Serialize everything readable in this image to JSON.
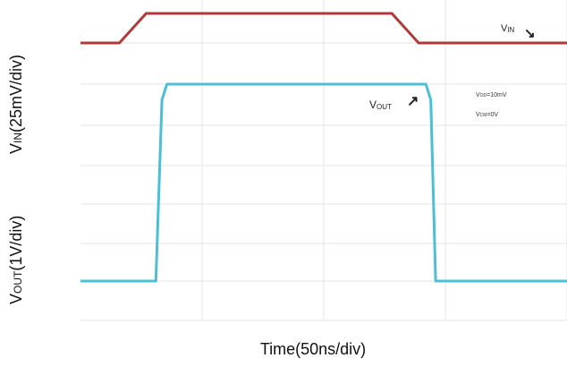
{
  "chart_data": {
    "type": "line",
    "title": "",
    "xlabel": "Time(50ns/div)",
    "ylabel_main": "V",
    "ylabel_out_sub": "OUT",
    "ylabel_out_rest": "(1V/div)",
    "ylabel_in_sub": "IN",
    "ylabel_in_rest": "(25mV/div)",
    "x_divisions": 4,
    "x_range_ns": [
      0,
      200
    ],
    "grid": true,
    "series": [
      {
        "name": "VIN",
        "label_main": "V",
        "label_sub": "IN",
        "label_arrow": "↘",
        "color": "#b03a3a",
        "units": "mV",
        "x": [
          0,
          16,
          27,
          128,
          139,
          200
        ],
        "y": [
          0,
          0,
          25,
          25,
          0,
          0
        ]
      },
      {
        "name": "VOUT",
        "label_main": "V",
        "label_sub": "OUT",
        "label_arrow": "↗",
        "color": "#4bbfd6",
        "units": "V",
        "x": [
          0,
          31,
          33.5,
          35.5,
          142,
          144,
          146,
          200
        ],
        "y": [
          0,
          0,
          4.6,
          5,
          5,
          4.6,
          0,
          0
        ]
      }
    ],
    "annotations": [
      {
        "main": "V",
        "sub": "OD",
        "rest": "=10mV"
      },
      {
        "main": "V",
        "sub": "CM",
        "rest": "=0V"
      }
    ]
  }
}
